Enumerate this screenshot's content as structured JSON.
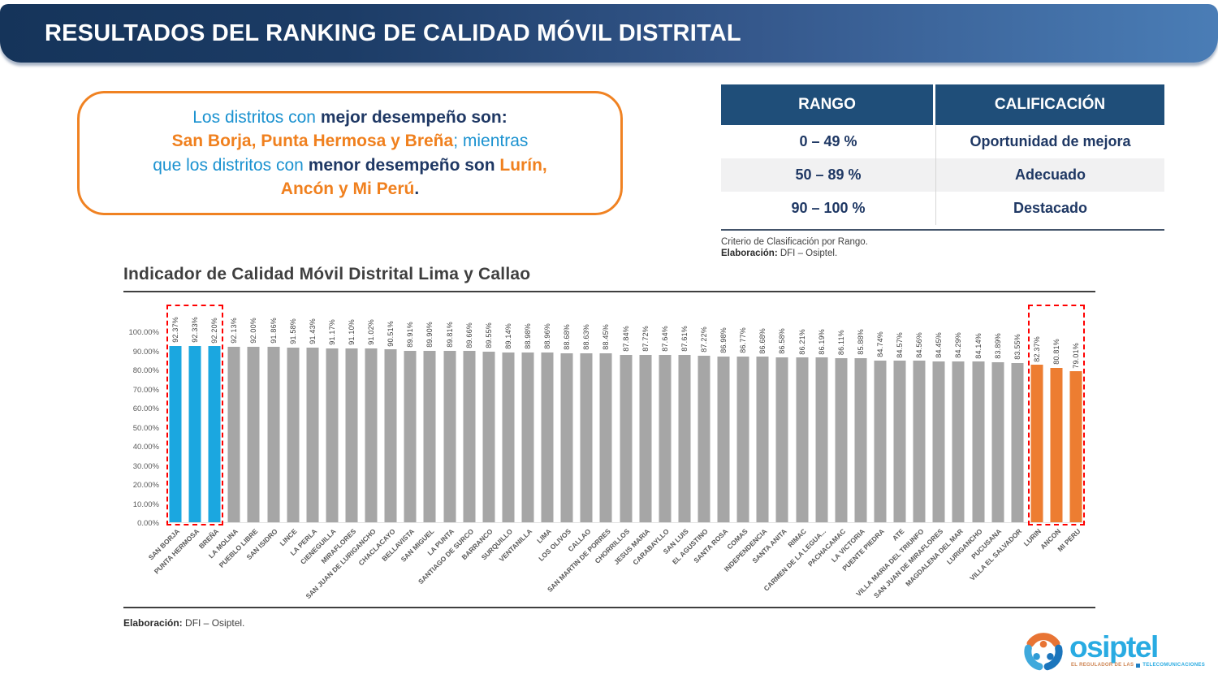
{
  "header": {
    "title": "RESULTADOS DEL RANKING DE CALIDAD MÓVIL DISTRITAL"
  },
  "callout": {
    "segments": [
      {
        "t": "Los distritos con ",
        "s": "blue"
      },
      {
        "t": "mejor desempeño son:",
        "s": "navy"
      },
      {
        "br": true
      },
      {
        "t": "San Borja, Punta Hermosa y Breña",
        "s": "orange"
      },
      {
        "t": "; mientras",
        "s": "blue"
      },
      {
        "br": true
      },
      {
        "t": "que los distritos con ",
        "s": "blue"
      },
      {
        "t": "menor desempeño son ",
        "s": "navy"
      },
      {
        "t": "Lurín,",
        "s": "orange"
      },
      {
        "br": true
      },
      {
        "t": "Ancón y Mi Perú",
        "s": "orange"
      },
      {
        "t": ".",
        "s": "navy"
      }
    ]
  },
  "table": {
    "headers": [
      "RANGO",
      "CALIFICACIÓN"
    ],
    "rows": [
      [
        "0 – 49 %",
        "Oportunidad de mejora"
      ],
      [
        "50 – 89 %",
        "Adecuado"
      ],
      [
        "90 – 100 %",
        "Destacado"
      ]
    ],
    "caption_line": "Criterio de Clasificación por Rango.",
    "source_label": "Elaboración:",
    "source_text": " DFI – Osiptel."
  },
  "chart_data": {
    "type": "bar",
    "title": "Indicador de Calidad Móvil Distrital Lima y Callao",
    "xlabel": "",
    "ylabel": "",
    "ylim": [
      0,
      100
    ],
    "ytick_step": 10,
    "ytick_suffix": "%",
    "grid": false,
    "legend": "none",
    "value_label_suffix": "%",
    "categories": [
      "SAN BORJA",
      "PUNTA HERMOSA",
      "BREÑA",
      "LA MOLINA",
      "PUEBLO LIBRE",
      "SAN ISIDRO",
      "LINCE",
      "LA PERLA",
      "CIENEGUILLA",
      "MIRAFLORES",
      "SAN JUAN DE LURIGANCHO",
      "CHACLACAYO",
      "BELLAVISTA",
      "SAN MIGUEL",
      "LA PUNTA",
      "SANTIAGO DE SURCO",
      "BARRANCO",
      "SURQUILLO",
      "VENTANILLA",
      "LIMA",
      "LOS OLIVOS",
      "CALLAO",
      "SAN MARTIN DE PORRES",
      "CHORRILLOS",
      "JESUS MARIA",
      "CARABAYLLO",
      "SAN LUIS",
      "EL AGUSTINO",
      "SANTA ROSA",
      "COMAS",
      "INDEPENDENCIA",
      "SANTA ANITA",
      "RIMAC",
      "CARMEN DE LA LEGUA...",
      "PACHACAMAC",
      "LA VICTORIA",
      "PUENTE PIEDRA",
      "ATE",
      "VILLA MARIA DEL TRIUNFO",
      "SAN JUAN DE MIRAFLORES",
      "MAGDALENA DEL MAR",
      "LURIGANCHO",
      "PUCUSANA",
      "VILLA EL SALVADOR",
      "LURIN",
      "ANCON",
      "MI PERU"
    ],
    "values": [
      92.37,
      92.33,
      92.2,
      92.13,
      92.0,
      91.86,
      91.58,
      91.43,
      91.17,
      91.1,
      91.02,
      90.51,
      89.91,
      89.9,
      89.81,
      89.66,
      89.55,
      89.14,
      88.98,
      88.96,
      88.68,
      88.63,
      88.45,
      87.84,
      87.72,
      87.64,
      87.61,
      87.22,
      86.98,
      86.77,
      86.68,
      86.58,
      86.21,
      86.19,
      86.11,
      85.88,
      84.74,
      84.57,
      84.56,
      84.45,
      84.29,
      84.14,
      83.89,
      83.55,
      82.37,
      80.81,
      79.01
    ],
    "bar_color": "#a6a6a6",
    "highlight_top": {
      "indices": [
        0,
        1,
        2
      ],
      "color": "#1ba7e0"
    },
    "highlight_bottom": {
      "indices": [
        44,
        45,
        46
      ],
      "color": "#ed7d31"
    },
    "highlight_box_color": "#ff0000"
  },
  "chart_source": {
    "label": "Elaboración:",
    "text": " DFI – Osiptel."
  },
  "logo": {
    "name": "osiptel",
    "tagline_left": "EL REGULADOR DE LAS",
    "tagline_right": "TELECOMUNICACIONES",
    "brand_blue": "#29abe2",
    "brand_dark_blue": "#1b75bc",
    "brand_orange": "#e87434"
  }
}
